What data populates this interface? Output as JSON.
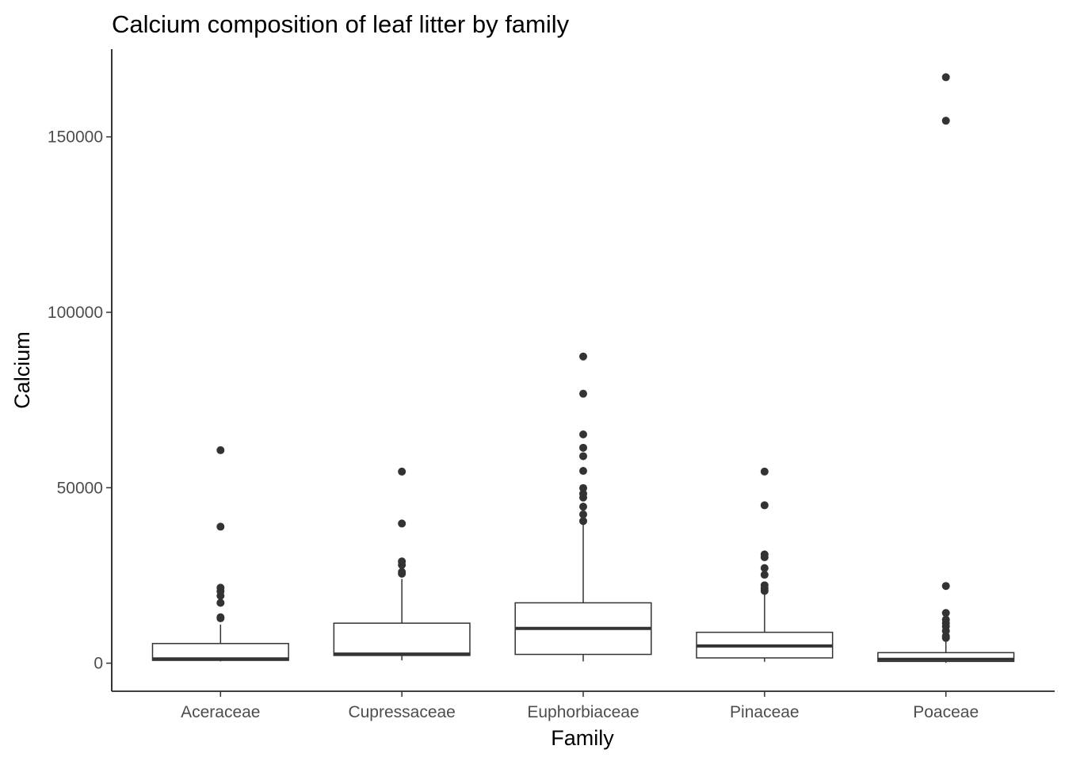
{
  "chart_data": {
    "type": "boxplot",
    "title": "Calcium composition of leaf litter by family",
    "xlabel": "Family",
    "ylabel": "Calcium",
    "ylim": [
      -8000,
      175000
    ],
    "yticks": [
      0,
      50000,
      100000,
      150000
    ],
    "ytick_labels": [
      "0",
      "50000",
      "100000",
      "150000"
    ],
    "grid": false,
    "legend": "none",
    "colors": {
      "box_fill": "#ffffff",
      "box_stroke": "#333333",
      "outlier": "#333333",
      "axis": "#000000",
      "tick_label": "#4d4d4d"
    },
    "categories": [
      "Aceraceae",
      "Cupressaceae",
      "Euphorbiaceae",
      "Pinaceae",
      "Poaceae"
    ],
    "boxes": [
      {
        "category": "Aceraceae",
        "whisker_low": 500,
        "q1": 800,
        "median": 1200,
        "q3": 5600,
        "whisker_high": 11000,
        "outliers": [
          12800,
          13100,
          17200,
          19200,
          20500,
          21500,
          38900,
          60700
        ]
      },
      {
        "category": "Cupressaceae",
        "whisker_low": 800,
        "q1": 2200,
        "median": 2600,
        "q3": 11400,
        "whisker_high": 24000,
        "outliers": [
          25500,
          26000,
          28000,
          29000,
          39800,
          54600
        ]
      },
      {
        "category": "Euphorbiaceae",
        "whisker_low": 500,
        "q1": 2500,
        "median": 9900,
        "q3": 17200,
        "whisker_high": 40000,
        "outliers": [
          40500,
          42400,
          44600,
          47200,
          48300,
          49900,
          54800,
          59000,
          61400,
          65200,
          76800,
          87400
        ]
      },
      {
        "category": "Pinaceae",
        "whisker_low": 400,
        "q1": 1500,
        "median": 4900,
        "q3": 8800,
        "whisker_high": 20000,
        "outliers": [
          20600,
          21300,
          22200,
          25200,
          27100,
          30200,
          31000,
          45000,
          54600
        ]
      },
      {
        "category": "Poaceae",
        "whisker_low": 100,
        "q1": 500,
        "median": 1100,
        "q3": 3000,
        "whisker_high": 6500,
        "outliers": [
          7200,
          7700,
          9200,
          10500,
          11400,
          12400,
          14300,
          22000,
          154600,
          167000
        ]
      }
    ]
  }
}
